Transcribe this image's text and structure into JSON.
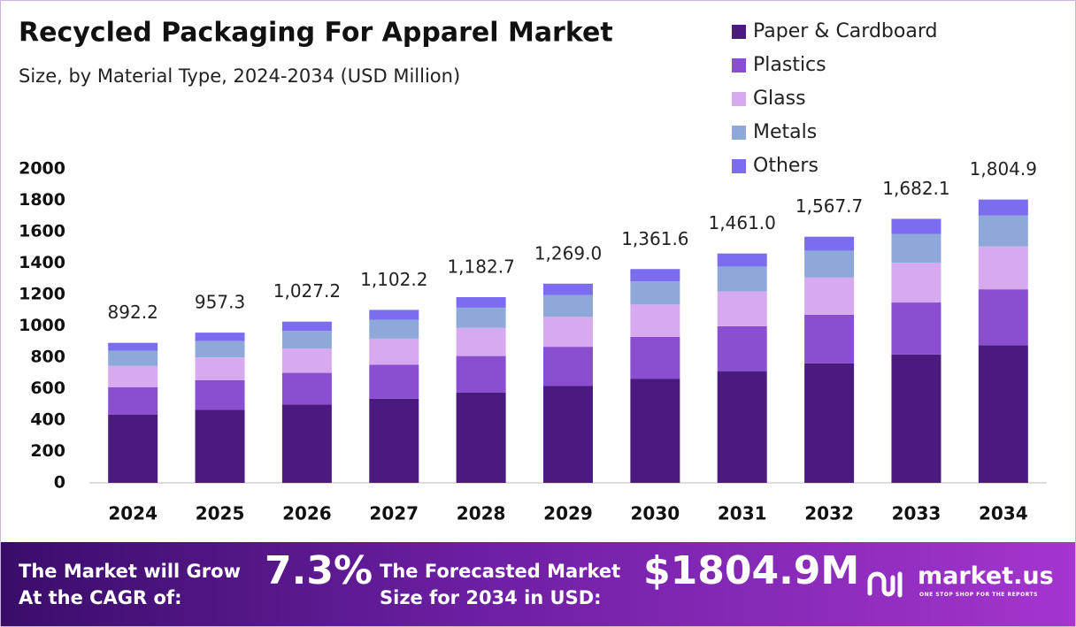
{
  "chart_data": {
    "type": "stacked_bar",
    "title": "Recycled Packaging For Apparel Market",
    "subtitle": "Size, by Material Type, 2024-2034 (USD Million)",
    "categories": [
      "2024",
      "2025",
      "2026",
      "2027",
      "2028",
      "2029",
      "2030",
      "2031",
      "2032",
      "2033",
      "2034"
    ],
    "series": [
      {
        "name": "Paper & Cardboard",
        "color": "#4b1a7f",
        "values": [
          434,
          465,
          499,
          536,
          575,
          617,
          662,
          710,
          762,
          818,
          877
        ]
      },
      {
        "name": "Plastics",
        "color": "#8a4fd0",
        "values": [
          176,
          189,
          202,
          217,
          233,
          250,
          268,
          288,
          309,
          331,
          356
        ]
      },
      {
        "name": "Glass",
        "color": "#d7aaef",
        "values": [
          135,
          145,
          155,
          166,
          179,
          192,
          206,
          221,
          237,
          254,
          273
        ]
      },
      {
        "name": "Metals",
        "color": "#8fa8da",
        "values": [
          97,
          104,
          112,
          120,
          129,
          138,
          148,
          159,
          171,
          183,
          197
        ]
      },
      {
        "name": "Others",
        "color": "#7b6cf0",
        "values": [
          50,
          54,
          59,
          63,
          67,
          72,
          78,
          83,
          89,
          96,
          102
        ]
      }
    ],
    "totals": {
      "values": [
        892.2,
        957.3,
        1027.2,
        1102.2,
        1182.7,
        1269.0,
        1361.6,
        1461.0,
        1567.7,
        1682.1,
        1804.9
      ],
      "value_labels": [
        "892.2",
        "957.3",
        "1,027.2",
        "1,102.2",
        "1,182.7",
        "1,269.0",
        "1,361.6",
        "1,461.0",
        "1,567.7",
        "1,682.1",
        "1,804.9"
      ]
    },
    "ylim": [
      0,
      2000
    ],
    "yticks": [
      0,
      200,
      400,
      600,
      800,
      1000,
      1200,
      1400,
      1600,
      1800,
      2000
    ],
    "grid": false,
    "legend": "top-right"
  },
  "footer": {
    "cagr_label": [
      "The Market will Grow",
      "At the CAGR of:"
    ],
    "cagr_value": "7.3%",
    "forecast_label": [
      "The Forecasted Market",
      "Size for 2034 in USD:"
    ],
    "forecast_value": "$1804.9M",
    "brand": "market.us",
    "tagline": "ONE STOP SHOP FOR THE REPORTS"
  }
}
